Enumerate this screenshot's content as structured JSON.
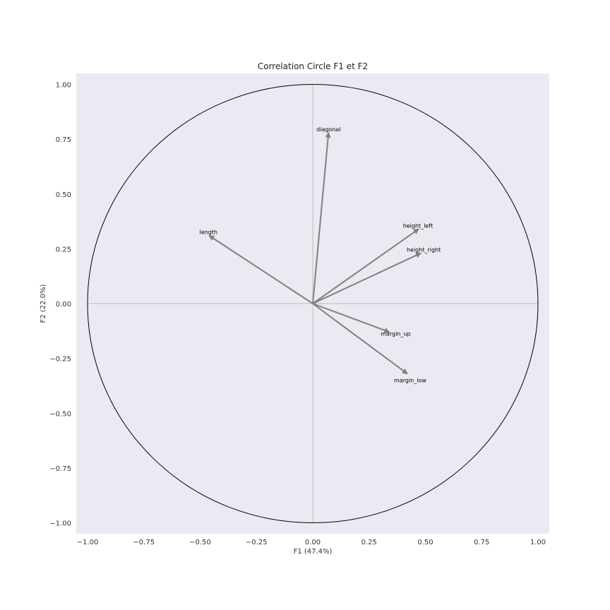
{
  "chart_data": {
    "type": "scatter",
    "title": "Correlation Circle F1 et F2",
    "xlabel": "F1 (47.4%)",
    "ylabel": "F2 (22.0%)",
    "xlim": [
      -1.05,
      1.05
    ],
    "ylim": [
      -1.05,
      1.05
    ],
    "xticks": [
      -1.0,
      -0.75,
      -0.5,
      -0.25,
      0.0,
      0.25,
      0.5,
      0.75,
      1.0
    ],
    "yticks": [
      -1.0,
      -0.75,
      -0.5,
      -0.25,
      0.0,
      0.25,
      0.5,
      0.75,
      1.0
    ],
    "xtick_labels": [
      "−1.00",
      "−0.75",
      "−0.50",
      "−0.25",
      "0.00",
      "0.25",
      "0.50",
      "0.75",
      "1.00"
    ],
    "ytick_labels": [
      "−1.00",
      "−0.75",
      "−0.50",
      "−0.25",
      "0.00",
      "0.25",
      "0.50",
      "0.75",
      "1.00"
    ],
    "grid": false,
    "unit_circle": true,
    "vectors": [
      {
        "label": "length",
        "x": -0.46,
        "y": 0.31
      },
      {
        "label": "diagonal",
        "x": 0.07,
        "y": 0.78
      },
      {
        "label": "height_left",
        "x": 0.47,
        "y": 0.34
      },
      {
        "label": "height_right",
        "x": 0.48,
        "y": 0.23
      },
      {
        "label": "margin_up",
        "x": 0.34,
        "y": -0.13
      },
      {
        "label": "margin_low",
        "x": 0.42,
        "y": -0.32
      }
    ],
    "colors": {
      "plot_background": "#eaeaf2",
      "arrow": "#808080",
      "circle": "#000000",
      "axis_lines": "#bfbfbf"
    }
  }
}
